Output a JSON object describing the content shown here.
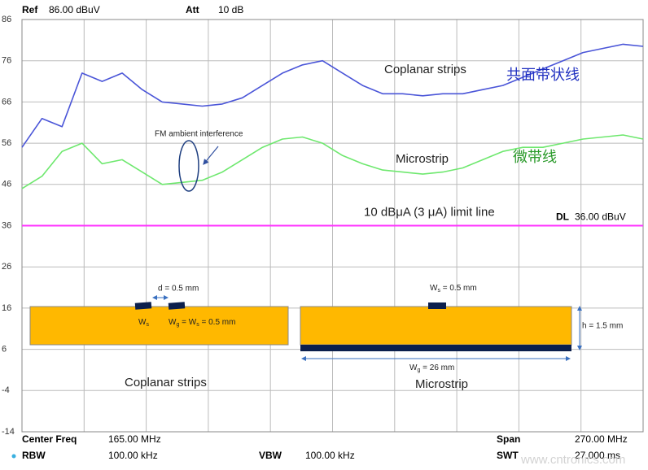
{
  "chart_data": {
    "type": "line",
    "header": {
      "ref_label": "Ref",
      "ref_value": "86.00 dBuV",
      "att_label": "Att",
      "att_value": "10 dB"
    },
    "footer": {
      "center_label": "Center Freq",
      "center_value": "165.00 MHz",
      "span_label": "Span",
      "span_value": "270.00 MHz",
      "rbw_label": "RBW",
      "rbw_value": "100.00 kHz",
      "vbw_label": "VBW",
      "vbw_value": "100.00 kHz",
      "swt_label": "SWT",
      "swt_value": "27.000 ms"
    },
    "ylim": [
      -14,
      86
    ],
    "yticks": [
      86,
      76,
      66,
      56,
      46,
      36,
      26,
      16,
      6,
      -4,
      -14
    ],
    "grid": true,
    "series": [
      {
        "name": "Coplanar strips",
        "color": "#4a55d8",
        "annotation": "共面带状线",
        "values": [
          55,
          62,
          60,
          73,
          71,
          73,
          69,
          66,
          65.5,
          65,
          65.5,
          67,
          70,
          73,
          75,
          76,
          73,
          70,
          68,
          68,
          67.5,
          68,
          68,
          69,
          70,
          72,
          74,
          76,
          78,
          79,
          80,
          79.5
        ]
      },
      {
        "name": "Microstrip",
        "color": "#6ee86e",
        "annotation": "微带线",
        "values": [
          45,
          48,
          54,
          56,
          51,
          52,
          49,
          46,
          46.5,
          47,
          49,
          52,
          55,
          57,
          57.5,
          56,
          53,
          51,
          49.5,
          49,
          48.5,
          49,
          50,
          52,
          54,
          55,
          55,
          56,
          57,
          57.5,
          58,
          57
        ]
      }
    ],
    "limit_line": {
      "value": 36,
      "color": "#ff33ff",
      "label": "10 dBμA (3 μA) limit line",
      "dl_label": "DL",
      "dl_value": "36.00 dBuV"
    },
    "interference_note": "FM ambient interference",
    "diagram": {
      "coplanar": {
        "gap": "d = 0.5 mm",
        "ws": {
          "base": "W",
          "sub": "s"
        },
        "wg": {
          "base": "W",
          "sub": "g",
          "rest": " = W",
          "sub2": "s",
          "rest2": " = 0.5 mm"
        },
        "caption": "Coplanar strips"
      },
      "microstrip": {
        "ws": {
          "base": "W",
          "sub": "s",
          "rest": " = 0.5 mm"
        },
        "h": "h = 1.5 mm",
        "wg": {
          "base": "W",
          "sub": "g",
          "rest": " = 26 mm"
        },
        "caption": "Microstrip"
      }
    },
    "watermark": "www.cntronics.com"
  }
}
